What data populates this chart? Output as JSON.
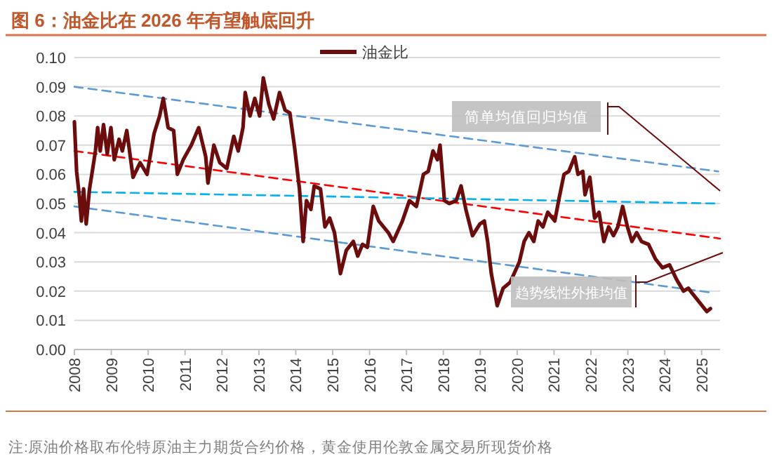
{
  "chart_data": {
    "type": "line",
    "title": "图 6：油金比在 2026 年有望触底回升",
    "annotations": [
      "简单均值回归均值",
      "趋势线性外推均值",
      "注:原油价格取布伦特原油主力期货合约价格，黄金使用伦敦金属交易所现货价格"
    ],
    "xlim": [
      2008,
      2025.5
    ],
    "xticks": [
      2008,
      2009,
      2010,
      2011,
      2012,
      2013,
      2014,
      2015,
      2016,
      2017,
      2018,
      2019,
      2020,
      2021,
      2022,
      2023,
      2024,
      2025
    ],
    "ylim": [
      0,
      0.1
    ],
    "yticks": [
      {
        "value": 0,
        "label": "0.00"
      },
      {
        "value": 0.01,
        "label": "0.01"
      },
      {
        "value": 0.02,
        "label": "0.02"
      },
      {
        "value": 0.03,
        "label": "0.03"
      },
      {
        "value": 0.04,
        "label": "0.04"
      },
      {
        "value": 0.05,
        "label": "0.05"
      },
      {
        "value": 0.06,
        "label": "0.06"
      },
      {
        "value": 0.07,
        "label": "0.07"
      },
      {
        "value": 0.08,
        "label": "0.08"
      },
      {
        "value": 0.09,
        "label": "0.09"
      },
      {
        "value": 0.1,
        "label": "0.10"
      }
    ],
    "grid": "y",
    "legend": "top",
    "series": [
      {
        "name": "油金比",
        "color": "#6b0d0d",
        "line_style": "solid",
        "x": [
          2008.0,
          2008.06,
          2008.13,
          2008.19,
          2008.25,
          2008.32,
          2008.41,
          2008.51,
          2008.57,
          2008.63,
          2008.7,
          2008.79,
          2008.89,
          2008.99,
          2009.08,
          2009.21,
          2009.3,
          2009.42,
          2009.59,
          2009.78,
          2009.97,
          2010.16,
          2010.31,
          2010.41,
          2010.54,
          2010.69,
          2010.79,
          2010.95,
          2011.17,
          2011.37,
          2011.56,
          2011.62,
          2011.78,
          2011.94,
          2012.13,
          2012.32,
          2012.44,
          2012.57,
          2012.63,
          2012.76,
          2012.89,
          2013.02,
          2013.12,
          2013.27,
          2013.4,
          2013.56,
          2013.71,
          2013.84,
          2013.97,
          2014.1,
          2014.2,
          2014.29,
          2014.41,
          2014.5,
          2014.67,
          2014.79,
          2014.92,
          2015.05,
          2015.21,
          2015.37,
          2015.56,
          2015.68,
          2015.81,
          2015.94,
          2016.1,
          2016.25,
          2016.51,
          2016.64,
          2016.89,
          2017.08,
          2017.27,
          2017.46,
          2017.59,
          2017.72,
          2017.84,
          2017.91,
          2018.03,
          2018.16,
          2018.35,
          2018.48,
          2018.61,
          2018.79,
          2018.99,
          2019.11,
          2019.2,
          2019.3,
          2019.46,
          2019.62,
          2019.81,
          2020.06,
          2020.19,
          2020.32,
          2020.45,
          2020.57,
          2020.7,
          2020.83,
          2021.02,
          2021.14,
          2021.27,
          2021.4,
          2021.56,
          2021.65,
          2021.78,
          2021.84,
          2021.97,
          2022.1,
          2022.22,
          2022.35,
          2022.48,
          2022.61,
          2022.73,
          2022.86,
          2022.99,
          2023.11,
          2023.24,
          2023.37,
          2023.56,
          2023.75,
          2023.94,
          2024.13,
          2024.32,
          2024.51,
          2024.64,
          2024.76,
          2024.95,
          2025.14,
          2025.24
        ],
        "values": [
          0.078,
          0.061,
          0.053,
          0.044,
          0.055,
          0.043,
          0.055,
          0.063,
          0.068,
          0.076,
          0.068,
          0.077,
          0.067,
          0.076,
          0.065,
          0.072,
          0.068,
          0.075,
          0.059,
          0.064,
          0.06,
          0.074,
          0.08,
          0.086,
          0.076,
          0.075,
          0.06,
          0.065,
          0.07,
          0.076,
          0.066,
          0.057,
          0.07,
          0.064,
          0.062,
          0.073,
          0.068,
          0.076,
          0.088,
          0.08,
          0.086,
          0.08,
          0.093,
          0.084,
          0.079,
          0.088,
          0.082,
          0.081,
          0.069,
          0.055,
          0.037,
          0.051,
          0.048,
          0.056,
          0.055,
          0.042,
          0.045,
          0.04,
          0.026,
          0.034,
          0.037,
          0.032,
          0.036,
          0.035,
          0.049,
          0.044,
          0.04,
          0.037,
          0.044,
          0.051,
          0.049,
          0.06,
          0.061,
          0.068,
          0.065,
          0.07,
          0.051,
          0.05,
          0.051,
          0.056,
          0.048,
          0.039,
          0.043,
          0.044,
          0.037,
          0.026,
          0.015,
          0.021,
          0.023,
          0.03,
          0.037,
          0.04,
          0.037,
          0.044,
          0.042,
          0.047,
          0.044,
          0.052,
          0.06,
          0.061,
          0.066,
          0.06,
          0.061,
          0.053,
          0.059,
          0.045,
          0.047,
          0.037,
          0.042,
          0.039,
          0.042,
          0.049,
          0.042,
          0.037,
          0.04,
          0.037,
          0.036,
          0.031,
          0.028,
          0.029,
          0.024,
          0.02,
          0.021,
          0.019,
          0.016,
          0.013,
          0.014
        ]
      },
      {
        "color": "#5b9bd5",
        "line_style": "dashed",
        "x": [
          2008,
          2025.45
        ],
        "values": [
          0.09,
          0.061
        ]
      },
      {
        "color": "#ff0000",
        "line_style": "dashed",
        "x": [
          2008,
          2025.5
        ],
        "values": [
          0.068,
          0.038
        ]
      },
      {
        "color": "#00b0f0",
        "line_style": "dashed",
        "x": [
          2008,
          2025.45
        ],
        "values": [
          0.054,
          0.05
        ]
      },
      {
        "color": "#5b9bd5",
        "line_style": "dashed",
        "x": [
          2008,
          2025.2
        ],
        "values": [
          0.049,
          0.0196
        ]
      }
    ]
  }
}
